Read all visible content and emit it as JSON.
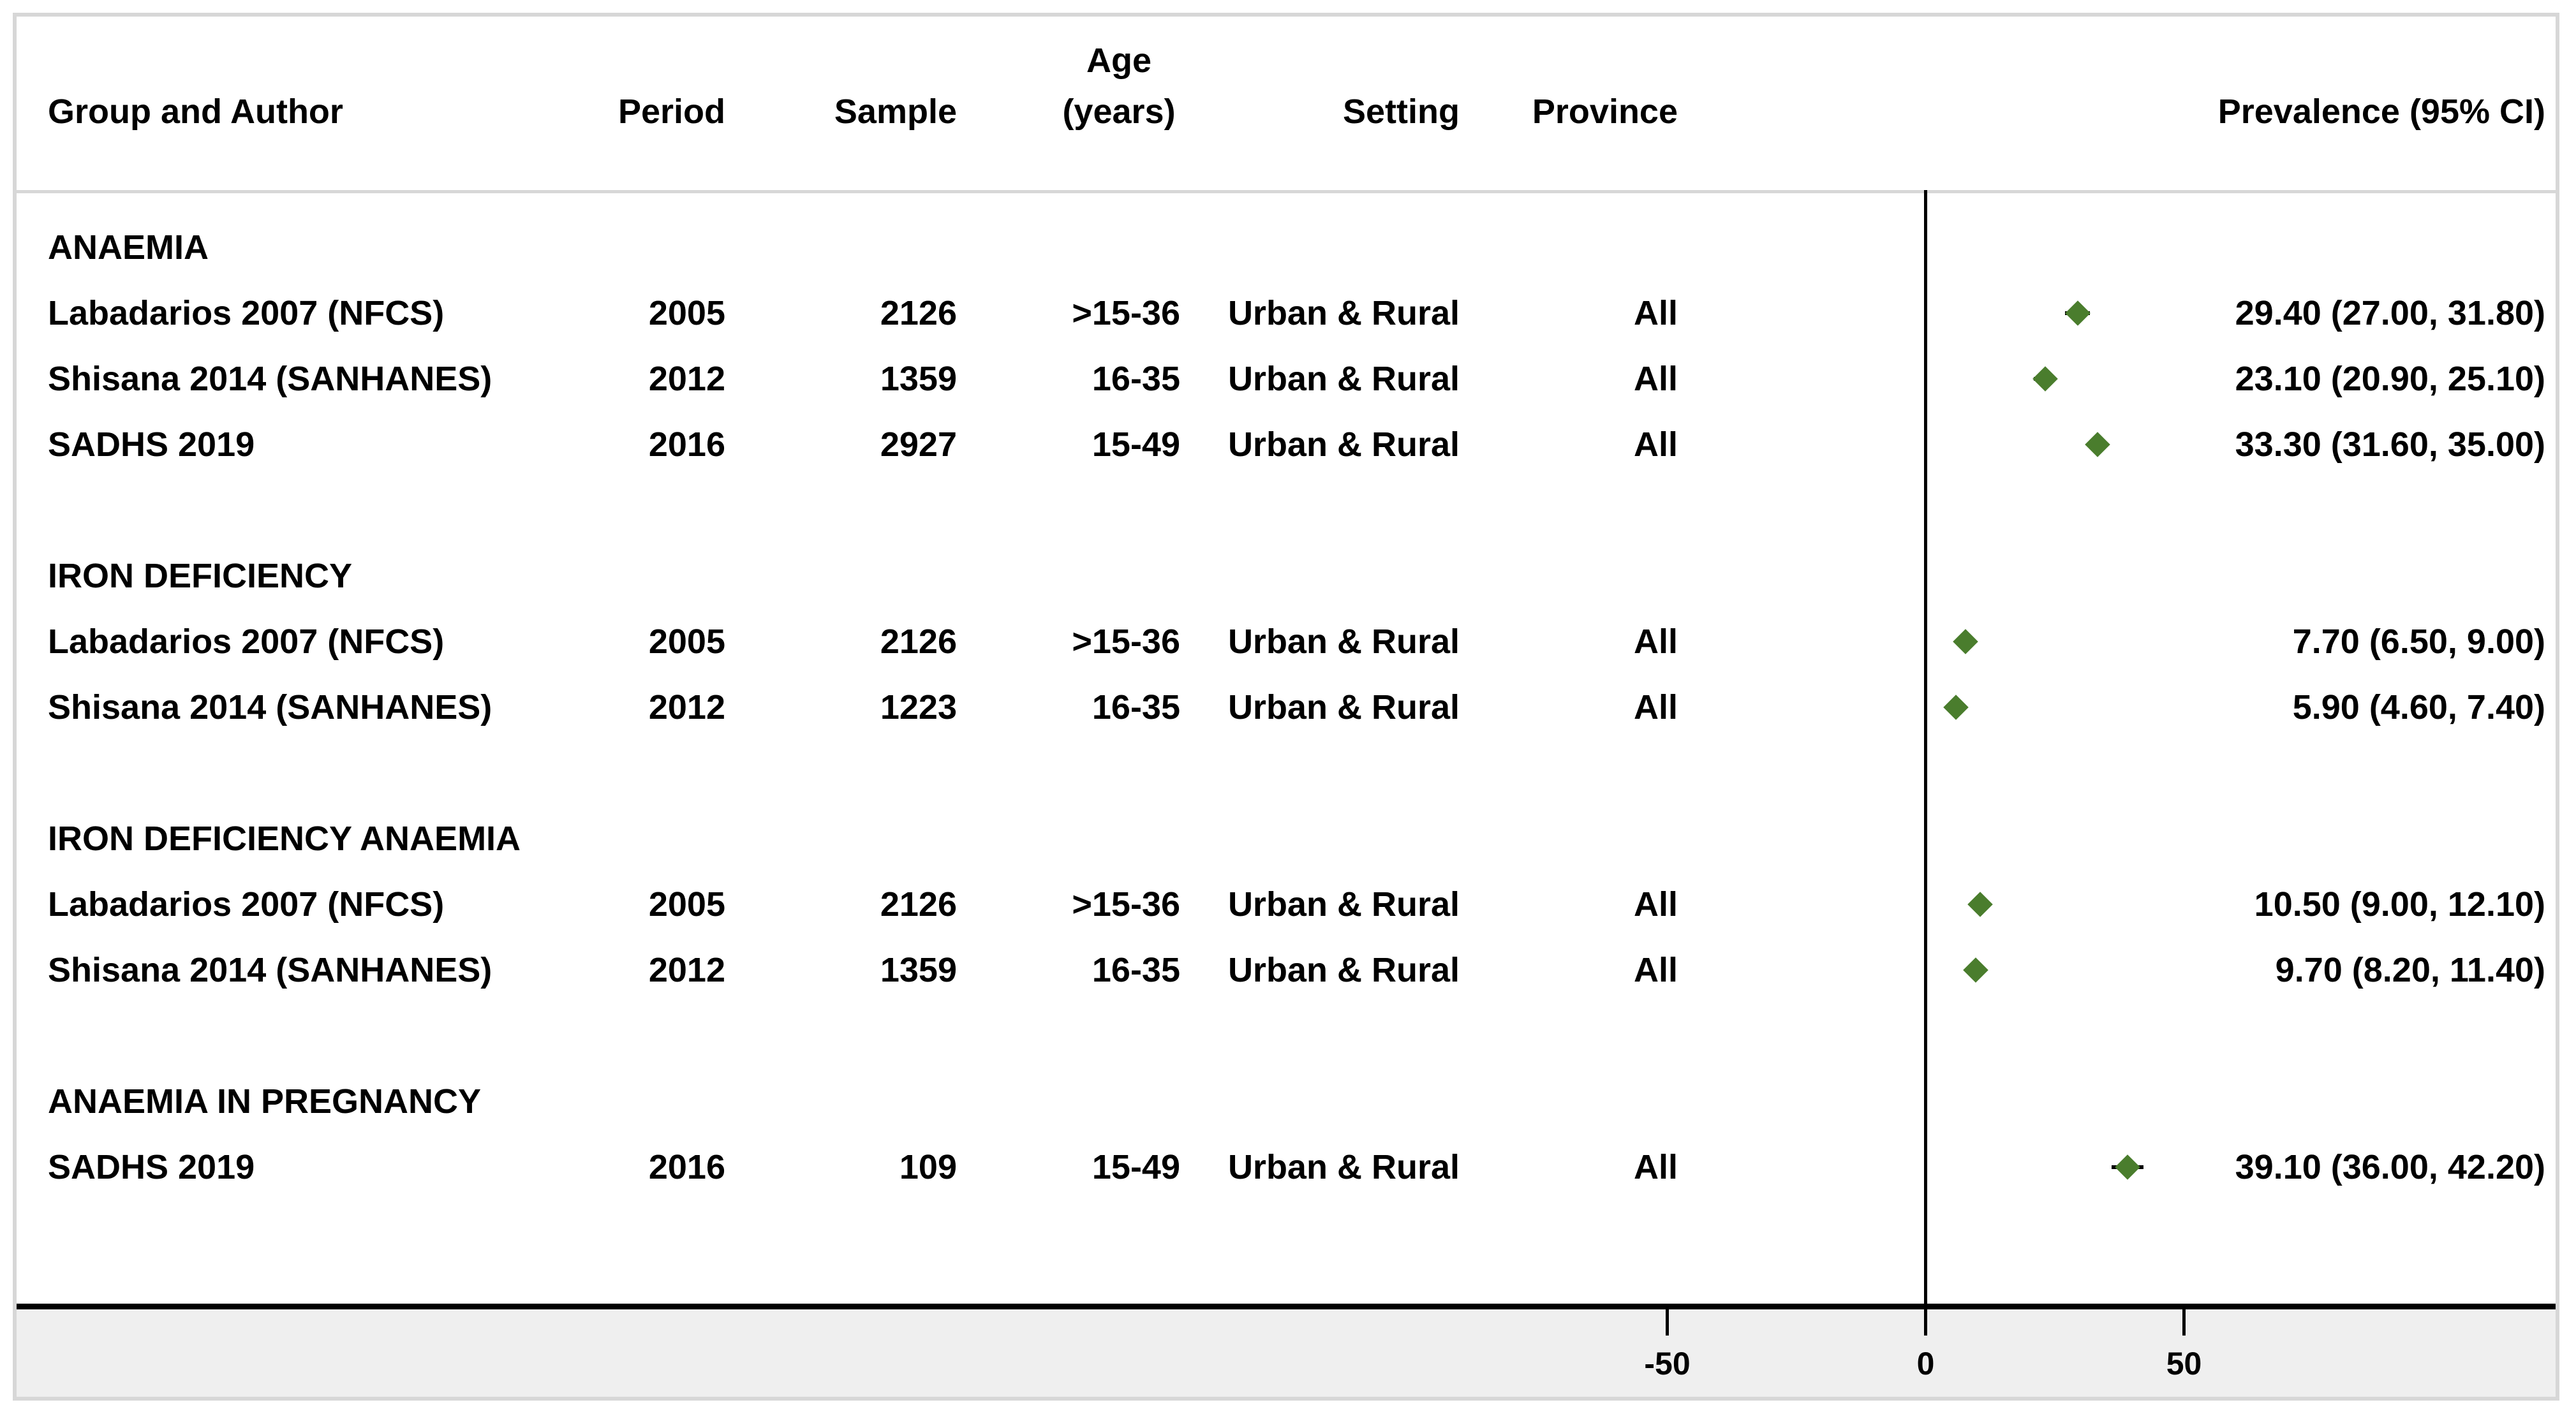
{
  "header": {
    "group_author": "Group and Author",
    "period": "Period",
    "sample": "Sample",
    "age_line1": "Age",
    "age_line2": "(years)",
    "setting": "Setting",
    "province": "Province",
    "prevalence": "Prevalence (95% CI)"
  },
  "axis": {
    "ticks": [
      "-50",
      "0",
      "50"
    ]
  },
  "colors": {
    "marker_green": "#4a7d2d",
    "ci_black": "#000000",
    "frame_gray": "#d7d7d7",
    "strip_gray": "#efefef"
  },
  "sections": [
    {
      "label": "ANAEMIA",
      "rows": [
        {
          "author": "Labadarios 2007 (NFCS)",
          "period": "2005",
          "sample": "2126",
          "age": ">15-36",
          "setting": "Urban & Rural",
          "province": "All",
          "prevalence": "29.40 (27.00, 31.80)"
        },
        {
          "author": "Shisana 2014 (SANHANES)",
          "period": "2012",
          "sample": "1359",
          "age": "16-35",
          "setting": "Urban & Rural",
          "province": "All",
          "prevalence": "23.10 (20.90, 25.10)"
        },
        {
          "author": "SADHS 2019",
          "period": "2016",
          "sample": "2927",
          "age": "15-49",
          "setting": "Urban & Rural",
          "province": "All",
          "prevalence": "33.30 (31.60, 35.00)"
        }
      ]
    },
    {
      "label": "IRON DEFICIENCY",
      "rows": [
        {
          "author": "Labadarios 2007 (NFCS)",
          "period": "2005",
          "sample": "2126",
          "age": ">15-36",
          "setting": "Urban & Rural",
          "province": "All",
          "prevalence": "7.70 (6.50, 9.00)"
        },
        {
          "author": "Shisana 2014 (SANHANES)",
          "period": "2012",
          "sample": "1223",
          "age": "16-35",
          "setting": "Urban & Rural",
          "province": "All",
          "prevalence": "5.90 (4.60, 7.40)"
        }
      ]
    },
    {
      "label": "IRON DEFICIENCY ANAEMIA",
      "rows": [
        {
          "author": "Labadarios 2007 (NFCS)",
          "period": "2005",
          "sample": "2126",
          "age": ">15-36",
          "setting": "Urban & Rural",
          "province": "All",
          "prevalence": "10.50 (9.00, 12.10)"
        },
        {
          "author": "Shisana 2014 (SANHANES)",
          "period": "2012",
          "sample": "1359",
          "age": "16-35",
          "setting": "Urban & Rural",
          "province": "All",
          "prevalence": "9.70 (8.20, 11.40)"
        }
      ]
    },
    {
      "label": "ANAEMIA IN PREGNANCY",
      "rows": [
        {
          "author": "SADHS 2019",
          "period": "2016",
          "sample": "109",
          "age": "15-49",
          "setting": "Urban & Rural",
          "province": "All",
          "prevalence": "39.10 (36.00, 42.20)"
        }
      ]
    }
  ],
  "chart_data": {
    "type": "scatter",
    "subtype": "forest-plot",
    "title": "",
    "xlabel": "",
    "xticks": [
      -50,
      0,
      50
    ],
    "zero_reference_line": 0,
    "legend": "none",
    "marker": "diamond",
    "groups": [
      {
        "name": "ANAEMIA",
        "points": [
          {
            "label": "Labadarios 2007 (NFCS)",
            "estimate": 29.4,
            "ci_low": 27.0,
            "ci_high": 31.8
          },
          {
            "label": "Shisana 2014 (SANHANES)",
            "estimate": 23.1,
            "ci_low": 20.9,
            "ci_high": 25.1
          },
          {
            "label": "SADHS 2019",
            "estimate": 33.3,
            "ci_low": 31.6,
            "ci_high": 35.0
          }
        ]
      },
      {
        "name": "IRON DEFICIENCY",
        "points": [
          {
            "label": "Labadarios 2007 (NFCS)",
            "estimate": 7.7,
            "ci_low": 6.5,
            "ci_high": 9.0
          },
          {
            "label": "Shisana 2014 (SANHANES)",
            "estimate": 5.9,
            "ci_low": 4.6,
            "ci_high": 7.4
          }
        ]
      },
      {
        "name": "IRON DEFICIENCY ANAEMIA",
        "points": [
          {
            "label": "Labadarios 2007 (NFCS)",
            "estimate": 10.5,
            "ci_low": 9.0,
            "ci_high": 12.1
          },
          {
            "label": "Shisana 2014 (SANHANES)",
            "estimate": 9.7,
            "ci_low": 8.2,
            "ci_high": 11.4
          }
        ]
      },
      {
        "name": "ANAEMIA IN PREGNANCY",
        "points": [
          {
            "label": "SADHS 2019",
            "estimate": 39.1,
            "ci_low": 36.0,
            "ci_high": 42.2
          }
        ]
      }
    ]
  }
}
